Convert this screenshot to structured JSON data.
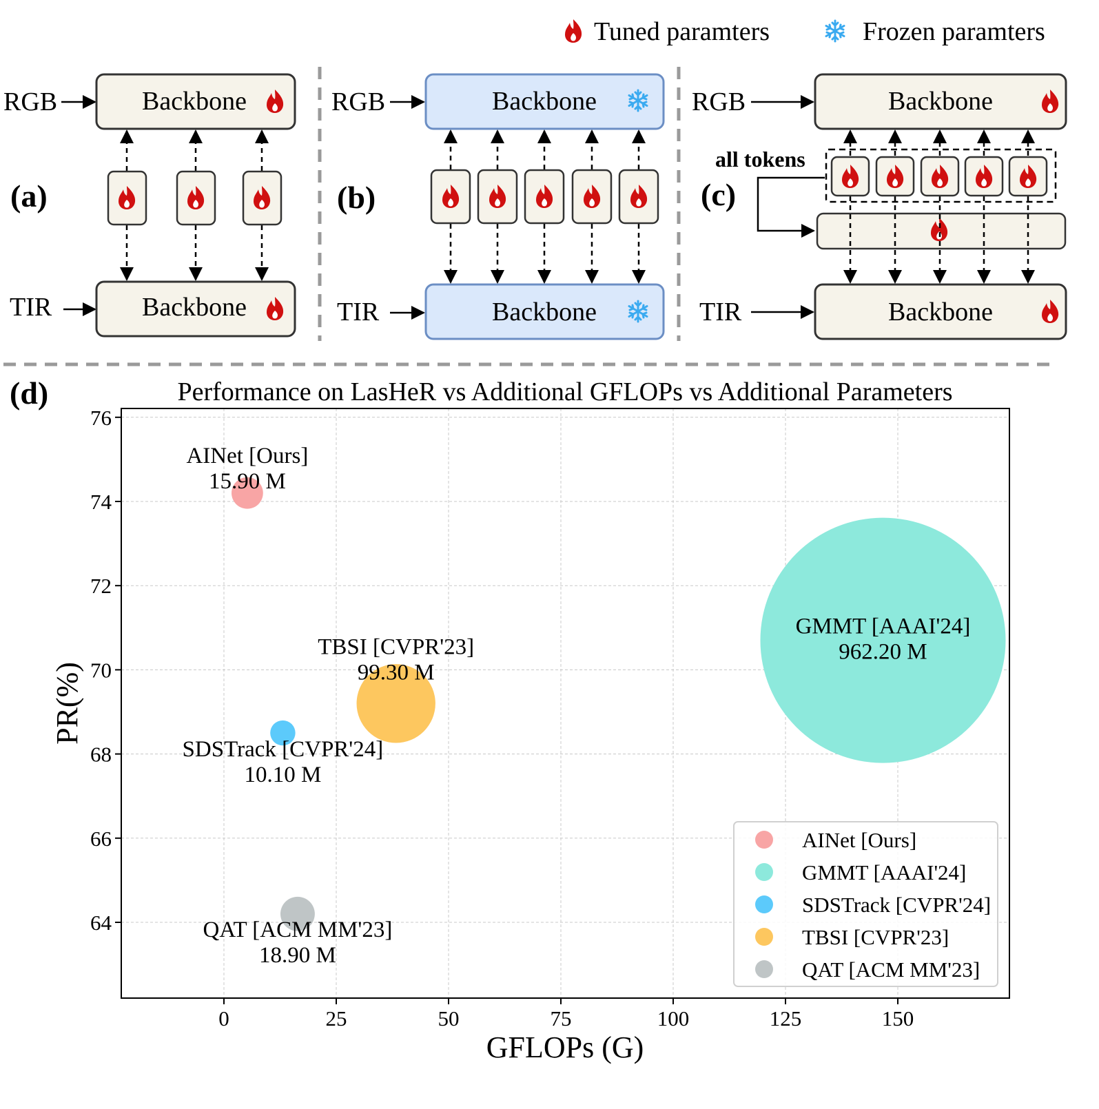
{
  "legend_top": {
    "tuned_label": "Tuned paramters",
    "frozen_label": "Frozen paramters"
  },
  "panels": {
    "a": {
      "label": "(a)",
      "top_input": "RGB",
      "bottom_input": "TIR",
      "top_box": "Backbone",
      "bottom_box": "Backbone",
      "backbone_state": "tuned",
      "module_count": 3
    },
    "b": {
      "label": "(b)",
      "top_input": "RGB",
      "bottom_input": "TIR",
      "top_box": "Backbone",
      "bottom_box": "Backbone",
      "backbone_state": "frozen",
      "module_count": 5
    },
    "c": {
      "label": "(c)",
      "top_input": "RGB",
      "bottom_input": "TIR",
      "top_box": "Backbone",
      "bottom_box": "Backbone",
      "backbone_state": "tuned",
      "module_count": 5,
      "tokens_label": "all tokens"
    },
    "d": {
      "label": "(d)"
    }
  },
  "colors": {
    "tuned_flame": "#d01010",
    "frozen_snow": "#3aaaf0",
    "backbone_tuned_fill": "#f6f3ea",
    "backbone_frozen_fill": "#dae8fb"
  },
  "chart_data": {
    "type": "scatter",
    "title": "Performance on LasHeR vs Additional GFLOPs vs Additional Parameters",
    "xlabel": "GFLOPs (G)",
    "ylabel": "PR(%)",
    "xlim": [
      -23,
      175
    ],
    "ylim": [
      62.6,
      76.2
    ],
    "xticks": [
      0,
      25,
      50,
      75,
      100,
      125,
      150
    ],
    "yticks": [
      64,
      66,
      68,
      70,
      72,
      74,
      76
    ],
    "grid": true,
    "legend_position": "lower-right",
    "size_encoding": "bubble area proportional to additional parameters (M)",
    "series": [
      {
        "name": "AINet [Ours]",
        "x": 5.2,
        "y": 74.2,
        "params": "15.90 M",
        "params_value": 15.9,
        "color": "#f8a5a5"
      },
      {
        "name": "GMMT [AAAI'24]",
        "x": 146.7,
        "y": 70.7,
        "params": "962.20 M",
        "params_value": 962.2,
        "color": "#8de9dc"
      },
      {
        "name": "SDSTrack [CVPR'24]",
        "x": 13.1,
        "y": 68.5,
        "params": "10.10 M",
        "params_value": 10.1,
        "color": "#5ccafb"
      },
      {
        "name": "TBSI [CVPR'23]",
        "x": 38.3,
        "y": 69.2,
        "params": "99.30 M",
        "params_value": 99.3,
        "color": "#fdc75f"
      },
      {
        "name": "QAT [ACM MM'23]",
        "x": 16.4,
        "y": 64.2,
        "params": "18.90 M",
        "params_value": 18.9,
        "color": "#bfc5c6"
      }
    ]
  }
}
